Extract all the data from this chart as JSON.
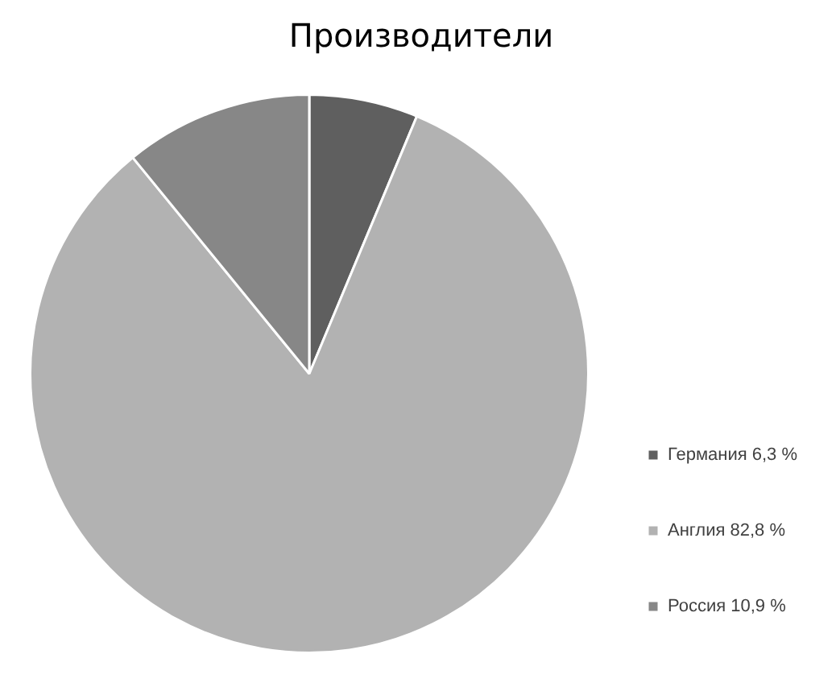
{
  "chart_data": {
    "type": "pie",
    "title": "Производители",
    "categories": [
      "Германия 6,3 %",
      "Англия 82,8 %",
      "Россия 10,9 %"
    ],
    "values": [
      6.3,
      82.8,
      10.9
    ],
    "colors": [
      "#5f5f5f",
      "#b2b2b2",
      "#878787"
    ],
    "legend": "bottom right"
  }
}
